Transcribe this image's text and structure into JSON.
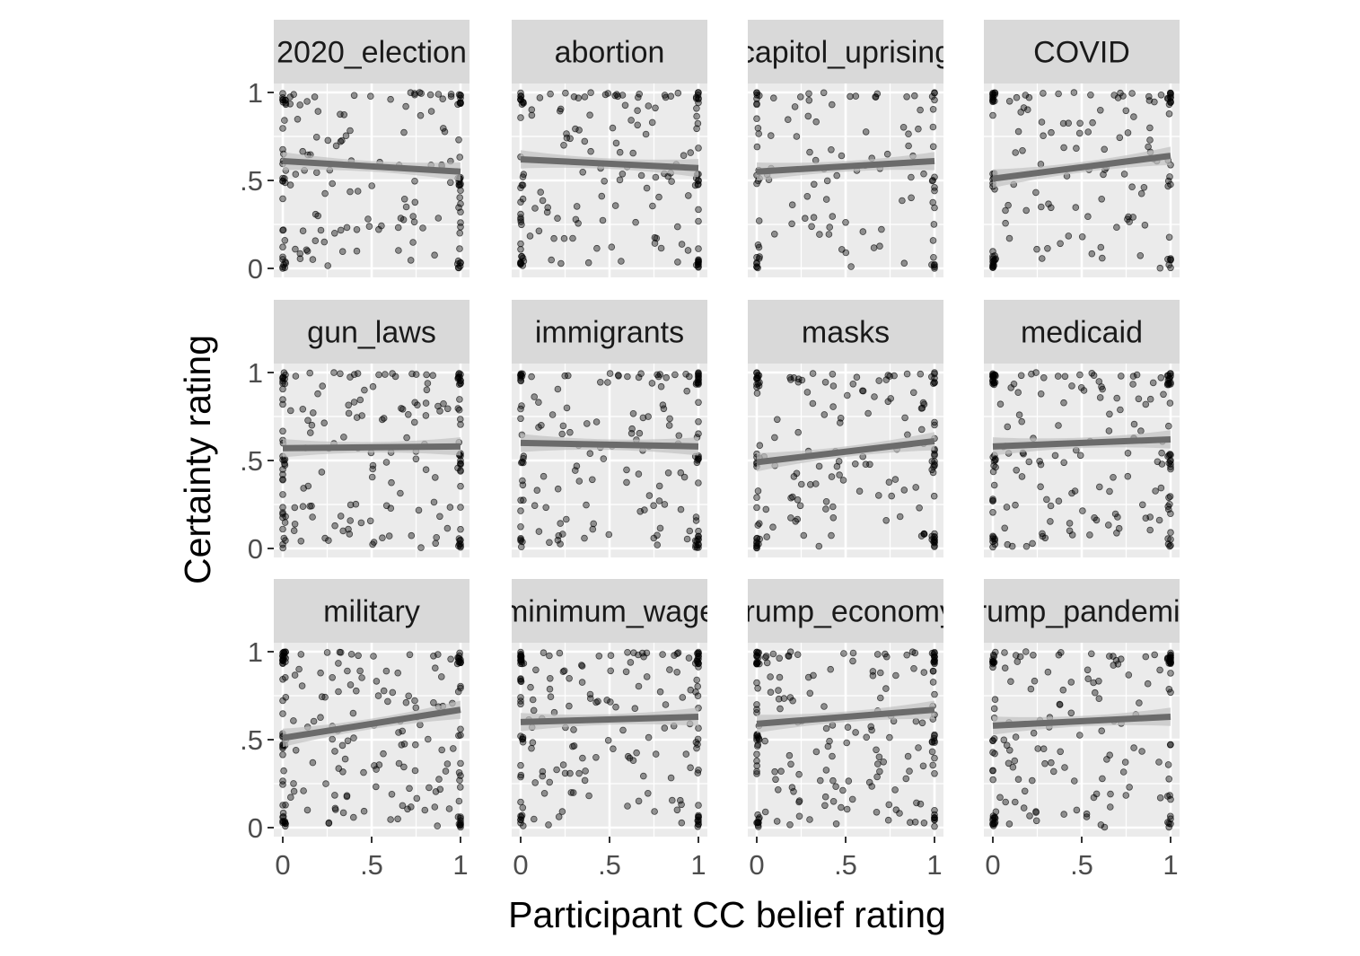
{
  "chart_data": {
    "type": "scatter",
    "xlabel": "Participant CC belief rating",
    "ylabel": "Certainty rating",
    "xlim": [
      0,
      1
    ],
    "ylim": [
      0,
      1
    ],
    "x_ticks": [
      "0",
      ".5",
      "1"
    ],
    "y_ticks": [
      "0",
      ".5",
      "1"
    ],
    "grid": true,
    "layout": "facet grid, 3 rows x 4 columns, shared axes",
    "colors": {
      "panel_background": "#ebebeb",
      "strip_background": "#d9d9d9",
      "gridline": "#ffffff",
      "points": "#000000",
      "fit_line": "#6b6b6b",
      "confidence_band": "#c2c2c2"
    },
    "panels": [
      {
        "label": "2020_election",
        "fit": {
          "y_at_0": 0.61,
          "y_at_1": 0.55
        },
        "point_density": 1.0
      },
      {
        "label": "abortion",
        "fit": {
          "y_at_0": 0.62,
          "y_at_1": 0.57
        },
        "point_density": 1.0
      },
      {
        "label": "capitol_uprising",
        "fit": {
          "y_at_0": 0.55,
          "y_at_1": 0.61
        },
        "point_density": 0.7
      },
      {
        "label": "COVID",
        "fit": {
          "y_at_0": 0.51,
          "y_at_1": 0.64
        },
        "point_density": 0.9
      },
      {
        "label": "gun_laws",
        "fit": {
          "y_at_0": 0.57,
          "y_at_1": 0.58
        },
        "point_density": 1.1
      },
      {
        "label": "immigrants",
        "fit": {
          "y_at_0": 0.6,
          "y_at_1": 0.58
        },
        "point_density": 1.0
      },
      {
        "label": "masks",
        "fit": {
          "y_at_0": 0.49,
          "y_at_1": 0.61
        },
        "point_density": 1.0
      },
      {
        "label": "medicaid",
        "fit": {
          "y_at_0": 0.58,
          "y_at_1": 0.62
        },
        "point_density": 1.1
      },
      {
        "label": "military",
        "fit": {
          "y_at_0": 0.51,
          "y_at_1": 0.67
        },
        "point_density": 1.2
      },
      {
        "label": "minimum_wage",
        "fit": {
          "y_at_0": 0.6,
          "y_at_1": 0.63
        },
        "point_density": 1.1
      },
      {
        "label": "trump_economy",
        "fit": {
          "y_at_0": 0.59,
          "y_at_1": 0.67
        },
        "point_density": 1.2
      },
      {
        "label": "trump_pandemic",
        "fit": {
          "y_at_0": 0.58,
          "y_at_1": 0.63
        },
        "point_density": 1.0
      }
    ]
  }
}
